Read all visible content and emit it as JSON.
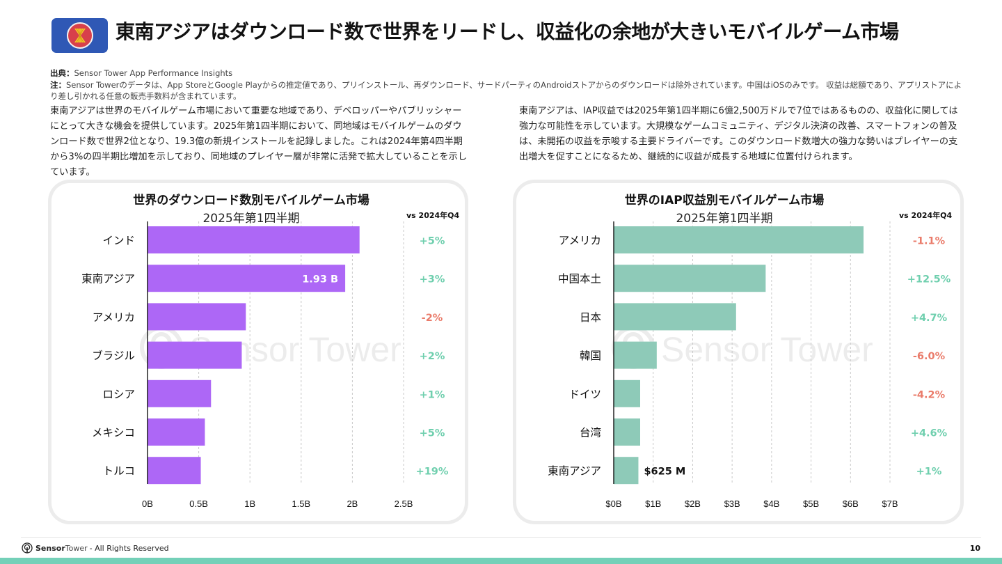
{
  "header": {
    "flag_icon": "asean-flag-icon",
    "title": "東南アジアはダウンロード数で世界をリードし、収益化の余地が大きいモバイルゲーム市場"
  },
  "notes": {
    "source_label": "出典：",
    "source_text": "Sensor Tower App Performance Insights",
    "note_label": "注：",
    "note_text": "Sensor Towerのデータは、App StoreとGoogle Playからの推定値であり、プリインストール、再ダウンロード、サードパーティのAndroidストアからのダウンロードは除外されています。中国はiOSのみです。 収益は総額であり、アプリストアにより差し引かれる任意の販売手数料が含まれています。"
  },
  "paragraphs": {
    "left": "東南アジアは世界のモバイルゲーム市場において重要な地域であり、デベロッパーやパブリッシャーにとって大きな機会を提供しています。2025年第1四半期において、同地域はモバイルゲームのダウンロード数で世界2位となり、19.3億の新規インストールを記録しました。これは2024年第4四半期から3%の四半期比増加を示しており、同地域のプレイヤー層が非常に活発で拡大していることを示しています。",
    "right": "東南アジアは、IAP収益では2025年第1四半期に6億2,500万ドルで7位ではあるものの、収益化に関しては強力な可能性を示しています。大規模なゲームコミュニティ、デジタル決済の改善、スマートフォンの普及は、未開拓の収益を示唆する主要ドライバーです。このダウンロード数増大の強力な勢いはプレイヤーの支出増大を促すことになるため、継続的に収益が成長する地域に位置付けられます。"
  },
  "colors": {
    "downloads_bar": "#ad67f6",
    "revenue_bar": "#8ecab8",
    "positive": "#6fcfae",
    "negative": "#ea7b6a",
    "accent_bar": "#74d0b8"
  },
  "chart_data": [
    {
      "type": "bar",
      "orientation": "horizontal",
      "title": "世界のダウンロード数別モバイルゲーム市場",
      "subtitle": "2025年第1四半期",
      "change_header": "vs 2024年Q4",
      "categories": [
        "インド",
        "東南アジア",
        "アメリカ",
        "ブラジル",
        "ロシア",
        "メキシコ",
        "トルコ"
      ],
      "values": [
        2.07,
        1.93,
        0.96,
        0.92,
        0.62,
        0.56,
        0.52
      ],
      "unit": "B",
      "data_labels": {
        "東南アジア": "1.93 B"
      },
      "changes": [
        "+5%",
        "+3%",
        "-2%",
        "+2%",
        "+1%",
        "+5%",
        "+19%"
      ],
      "xlim": [
        0,
        2.5
      ],
      "xticks": [
        0,
        0.5,
        1,
        1.5,
        2,
        2.5
      ],
      "xtick_labels": [
        "0B",
        "0.5B",
        "1B",
        "1.5B",
        "2B",
        "2.5B"
      ],
      "grid": true,
      "watermark": "Sensor Tower"
    },
    {
      "type": "bar",
      "orientation": "horizontal",
      "title": "世界のIAP収益別モバイルゲーム市場",
      "subtitle": "2025年第1四半期",
      "change_header": "vs 2024年Q4",
      "categories": [
        "アメリカ",
        "中国本土",
        "日本",
        "韓国",
        "ドイツ",
        "台湾",
        "東南アジア"
      ],
      "values": [
        6.33,
        3.85,
        3.1,
        1.09,
        0.67,
        0.67,
        0.625
      ],
      "unit": "$B",
      "data_labels": {
        "東南アジア": "$625 M"
      },
      "changes": [
        "-1.1%",
        "+12.5%",
        "+4.7%",
        "-6.0%",
        "-4.2%",
        "+4.6%",
        "+1%"
      ],
      "xlim": [
        0,
        7
      ],
      "xticks": [
        0,
        1,
        2,
        3,
        4,
        5,
        6,
        7
      ],
      "xtick_labels": [
        "$0B",
        "$1B",
        "$2B",
        "$3B",
        "$4B",
        "$5B",
        "$6B",
        "$7B"
      ],
      "grid": true,
      "watermark": "Sensor Tower"
    }
  ],
  "footer": {
    "brand_sensor": "Sensor",
    "brand_tower": "Tower",
    "rights": "- All Rights Reserved",
    "page_number": "10"
  }
}
